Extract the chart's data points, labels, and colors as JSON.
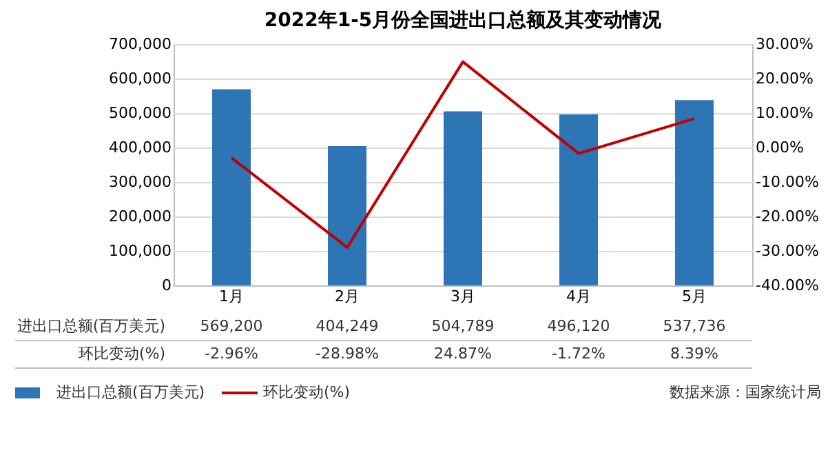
{
  "chart_data": {
    "type": "bar",
    "title": "2022年1-5月份全国进出口总额及其变动情况",
    "categories": [
      "1月",
      "2月",
      "3月",
      "4月",
      "5月"
    ],
    "series": [
      {
        "name": "进出口总额(百万美元)",
        "color": "#2e75b6",
        "values": [
          569200,
          404249,
          504789,
          496120,
          537736
        ],
        "value_labels": [
          "569,200",
          "404,249",
          "504,789",
          "496,120",
          "537,736"
        ]
      },
      {
        "name": "环比变动(%)",
        "type": "line",
        "axis": "y2",
        "color": "#c00000",
        "values": [
          -2.96,
          -28.98,
          24.87,
          -1.72,
          8.39
        ],
        "value_labels": [
          "-2.96%",
          "-28.98%",
          "24.87%",
          "-1.72%",
          "8.39%"
        ]
      }
    ],
    "ylim": [
      0,
      700000
    ],
    "yticks": [
      0,
      {
        "value": 100000,
        "label": "100,000"
      },
      {
        "value": 200000,
        "label": "200,000"
      },
      {
        "value": 300000,
        "label": "300,000"
      },
      {
        "value": 400000,
        "label": "400,000"
      },
      {
        "value": 500000,
        "label": "500,000"
      },
      {
        "value": 600000,
        "label": "600,000"
      },
      {
        "value": 700000,
        "label": "700,000"
      }
    ],
    "y2lim": [
      -40,
      30
    ],
    "y2ticks": [
      {
        "value": -40,
        "label": "-40.00%"
      },
      {
        "value": -30,
        "label": "-30.00%"
      },
      {
        "value": -20,
        "label": "-20.00%"
      },
      {
        "value": -10,
        "label": "-10.00%"
      },
      {
        "value": 0,
        "label": "0.00%"
      },
      {
        "value": 10,
        "label": "10.00%"
      },
      {
        "value": 20,
        "label": "20.00%"
      },
      {
        "value": 30,
        "label": "30.00%"
      }
    ],
    "grid": "y",
    "legend": "bottom left",
    "marker": "none",
    "line_style": "solid",
    "annotations": [
      "数据来源：国家统计局"
    ]
  }
}
